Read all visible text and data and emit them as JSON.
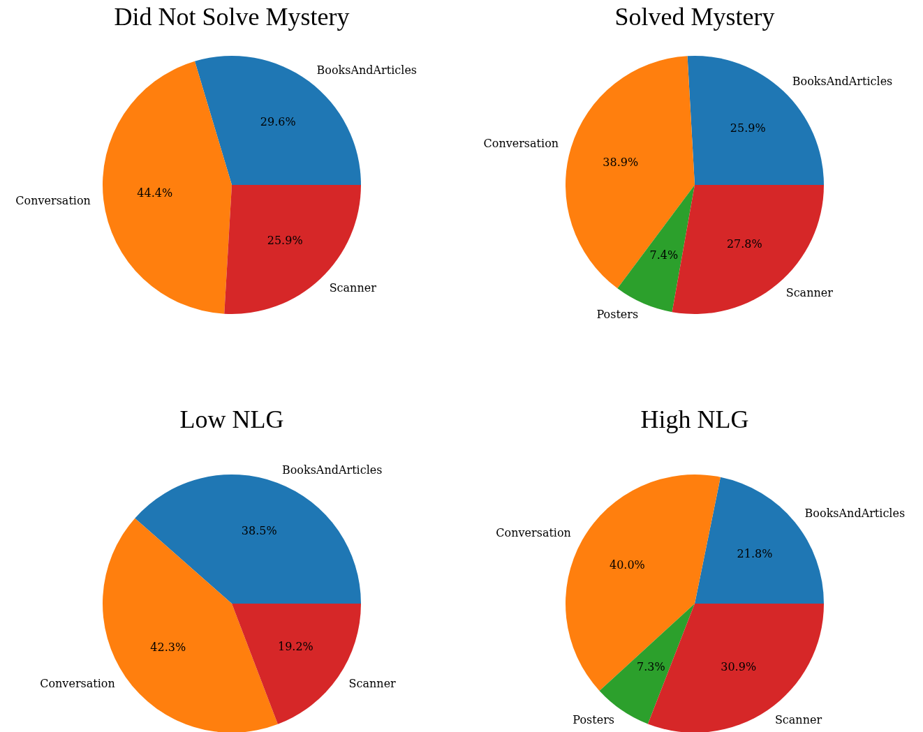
{
  "chart_data": [
    {
      "type": "pie",
      "title": "Did Not Solve Mystery",
      "categories": [
        "BooksAndArticles",
        "Conversation",
        "Scanner"
      ],
      "values": [
        29.6,
        44.4,
        25.9
      ],
      "value_labels": [
        "29.6%",
        "44.4%",
        "25.9%"
      ],
      "colors": [
        "#1f77b4",
        "#ff7f0e",
        "#d62728"
      ]
    },
    {
      "type": "pie",
      "title": "Solved Mystery",
      "categories": [
        "BooksAndArticles",
        "Conversation",
        "Posters",
        "Scanner"
      ],
      "values": [
        25.9,
        38.9,
        7.4,
        27.8
      ],
      "value_labels": [
        "25.9%",
        "38.9%",
        "7.4%",
        "27.8%"
      ],
      "colors": [
        "#1f77b4",
        "#ff7f0e",
        "#2ca02c",
        "#d62728"
      ]
    },
    {
      "type": "pie",
      "title": "Low NLG",
      "categories": [
        "BooksAndArticles",
        "Conversation",
        "Scanner"
      ],
      "values": [
        38.5,
        42.3,
        19.2
      ],
      "value_labels": [
        "38.5%",
        "42.3%",
        "19.2%"
      ],
      "colors": [
        "#1f77b4",
        "#ff7f0e",
        "#d62728"
      ]
    },
    {
      "type": "pie",
      "title": "High NLG",
      "categories": [
        "BooksAndArticles",
        "Conversation",
        "Posters",
        "Scanner"
      ],
      "values": [
        21.8,
        40.0,
        7.3,
        30.9
      ],
      "value_labels": [
        "21.8%",
        "40.0%",
        "7.3%",
        "30.9%"
      ],
      "colors": [
        "#1f77b4",
        "#ff7f0e",
        "#2ca02c",
        "#d62728"
      ]
    }
  ]
}
